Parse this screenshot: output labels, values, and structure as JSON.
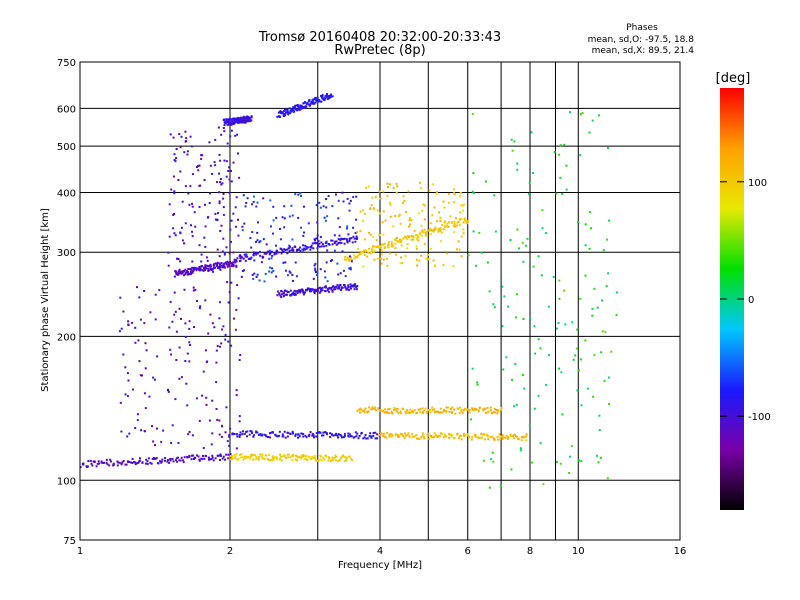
{
  "chart_data": {
    "type": "scatter",
    "title": "Tromsø 20160408 20:32:00-20:33:43",
    "subtitle": "RwPretec (8p)",
    "xlabel": "Frequency [MHz]",
    "ylabel": "Stationary phase Virtual Height [km]",
    "x_scale": "log",
    "y_scale": "log",
    "xlim": [
      1,
      16
    ],
    "ylim": [
      75,
      750
    ],
    "x_ticks": [
      1,
      2,
      4,
      6,
      8,
      10,
      16
    ],
    "x_gridlines": [
      2,
      3,
      4,
      5,
      6,
      7,
      8,
      9,
      10
    ],
    "y_ticks": [
      75,
      100,
      200,
      300,
      400,
      500,
      600,
      750
    ],
    "y_gridlines": [
      100,
      200,
      300,
      400,
      500,
      600
    ],
    "grid": true,
    "stats": {
      "heading": "Phases",
      "line_o": "mean, sd,O: -97.5, 18.8",
      "line_x": "mean, sd,X:  89.5, 21.4"
    },
    "colorbar": {
      "label": "[deg]",
      "range": [
        -180,
        180
      ],
      "ticks": [
        100,
        0,
        -100
      ],
      "colors": [
        "#000000",
        "#7a00a8",
        "#1a1aff",
        "#00c8ff",
        "#00e000",
        "#e8e800",
        "#ffa000",
        "#ff0000"
      ]
    },
    "series": [
      {
        "traces": [
          {
            "x": [
              1.0,
              2.0
            ],
            "y": [
              108,
              112
            ],
            "phase": -105
          },
          {
            "x": [
              2.0,
              3.5
            ],
            "y": [
              112,
              111
            ],
            "phase": 95
          },
          {
            "x": [
              2.0,
              4.0
            ],
            "y": [
              125,
              124
            ],
            "phase": -90
          },
          {
            "x": [
              4.0,
              7.9
            ],
            "y": [
              124,
              123
            ],
            "phase": 110
          },
          {
            "x": [
              3.6,
              7.0
            ],
            "y": [
              140,
              140
            ],
            "phase": 115
          },
          {
            "x": [
              1.55,
              2.05
            ],
            "y": [
              270,
              285
            ],
            "phase": -110
          },
          {
            "x": [
              2.05,
              3.6
            ],
            "y": [
              290,
              320
            ],
            "phase": -95
          },
          {
            "x": [
              2.5,
              3.6
            ],
            "y": [
              245,
              255
            ],
            "phase": -95
          },
          {
            "x": [
              3.4,
              6.0
            ],
            "y": [
              290,
              350
            ],
            "phase": 100
          },
          {
            "x": [
              2.5,
              3.2
            ],
            "y": [
              580,
              640
            ],
            "phase": -85
          },
          {
            "x": [
              1.95,
              2.2
            ],
            "y": [
              560,
              570
            ],
            "phase": -95
          }
        ],
        "clouds": [
          {
            "x": [
              1.5,
              2.1
            ],
            "y": [
              270,
              550
            ],
            "phase": -105
          },
          {
            "x": [
              2.1,
              3.6
            ],
            "y": [
              260,
              400
            ],
            "phase": -80
          },
          {
            "x": [
              1.2,
              2.1
            ],
            "y": [
              115,
              260
            ],
            "phase": -110
          },
          {
            "x": [
              3.6,
              5.9
            ],
            "y": [
              280,
              420
            ],
            "phase": 100
          },
          {
            "x": [
              6.0,
              12.0
            ],
            "y": [
              95,
              600
            ],
            "phase": 20
          }
        ]
      }
    ]
  }
}
